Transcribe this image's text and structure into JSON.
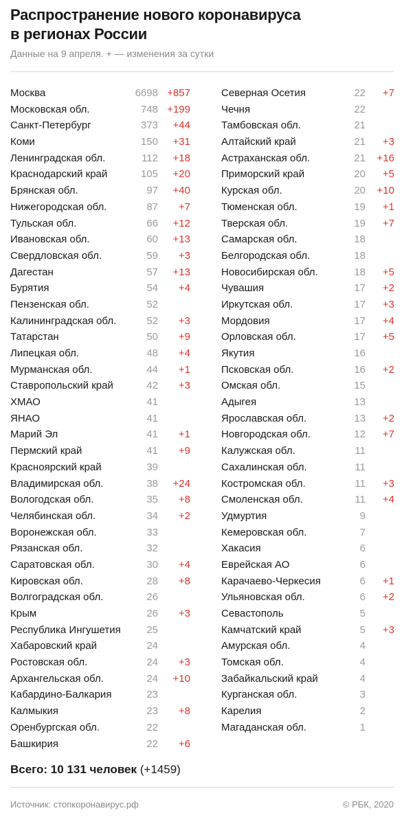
{
  "title_lines": [
    "Распространение нового коронавируса",
    "в регионах России"
  ],
  "subtitle": "Данные на 9 апреля. + — изменения за сутки",
  "left": [
    {
      "name": "Москва",
      "count": "6698",
      "delta": "+857"
    },
    {
      "name": "Московская обл.",
      "count": "748",
      "delta": "+199"
    },
    {
      "name": "Санкт-Петербург",
      "count": "373",
      "delta": "+44"
    },
    {
      "name": "Коми",
      "count": "150",
      "delta": "+31"
    },
    {
      "name": "Ленинградская обл.",
      "count": "112",
      "delta": "+18"
    },
    {
      "name": "Краснодарский край",
      "count": "105",
      "delta": "+20"
    },
    {
      "name": "Брянская обл.",
      "count": "97",
      "delta": "+40"
    },
    {
      "name": "Нижегородская обл.",
      "count": "87",
      "delta": "+7"
    },
    {
      "name": "Тульская обл.",
      "count": "66",
      "delta": "+12"
    },
    {
      "name": "Ивановская обл.",
      "count": "60",
      "delta": "+13"
    },
    {
      "name": "Свердловская обл.",
      "count": "59",
      "delta": "+3"
    },
    {
      "name": "Дагестан",
      "count": "57",
      "delta": "+13"
    },
    {
      "name": "Бурятия",
      "count": "54",
      "delta": "+4"
    },
    {
      "name": "Пензенская обл.",
      "count": "52",
      "delta": ""
    },
    {
      "name": "Калининградская обл.",
      "count": "52",
      "delta": "+3"
    },
    {
      "name": "Татарстан",
      "count": "50",
      "delta": "+9"
    },
    {
      "name": "Липецкая обл.",
      "count": "48",
      "delta": "+4"
    },
    {
      "name": "Мурманская обл.",
      "count": "44",
      "delta": "+1"
    },
    {
      "name": "Ставропольский край",
      "count": "42",
      "delta": "+3"
    },
    {
      "name": "ХМАО",
      "count": "41",
      "delta": ""
    },
    {
      "name": "ЯНАО",
      "count": "41",
      "delta": ""
    },
    {
      "name": "Марий Эл",
      "count": "41",
      "delta": "+1"
    },
    {
      "name": "Пермский край",
      "count": "41",
      "delta": "+9"
    },
    {
      "name": "Красноярский край",
      "count": "39",
      "delta": ""
    },
    {
      "name": "Владимирская обл.",
      "count": "38",
      "delta": "+24"
    },
    {
      "name": "Вологодская обл.",
      "count": "35",
      "delta": "+8"
    },
    {
      "name": "Челябинская обл.",
      "count": "34",
      "delta": "+2"
    },
    {
      "name": "Воронежская обл.",
      "count": "33",
      "delta": ""
    },
    {
      "name": "Рязанская обл.",
      "count": "32",
      "delta": ""
    },
    {
      "name": "Саратовская обл.",
      "count": "30",
      "delta": "+4"
    },
    {
      "name": "Кировская обл.",
      "count": "28",
      "delta": "+8"
    },
    {
      "name": "Волгоградская обл.",
      "count": "26",
      "delta": ""
    },
    {
      "name": "Крым",
      "count": "26",
      "delta": "+3"
    },
    {
      "name": "Республика Ингушетия",
      "count": "25",
      "delta": ""
    },
    {
      "name": "Хабаровский край",
      "count": "24",
      "delta": ""
    },
    {
      "name": "Ростовская обл.",
      "count": "24",
      "delta": "+3"
    },
    {
      "name": "Архангельская обл.",
      "count": "24",
      "delta": "+10"
    },
    {
      "name": "Кабардино-Балкария",
      "count": "23",
      "delta": ""
    },
    {
      "name": "Калмыкия",
      "count": "23",
      "delta": "+8"
    },
    {
      "name": "Оренбургская обл.",
      "count": "22",
      "delta": ""
    },
    {
      "name": "Башкирия",
      "count": "22",
      "delta": "+6"
    }
  ],
  "right": [
    {
      "name": "Северная Осетия",
      "count": "22",
      "delta": "+7"
    },
    {
      "name": "Чечня",
      "count": "22",
      "delta": ""
    },
    {
      "name": "Тамбовская обл.",
      "count": "21",
      "delta": ""
    },
    {
      "name": "Алтайский край",
      "count": "21",
      "delta": "+3"
    },
    {
      "name": "Астраханская обл.",
      "count": "21",
      "delta": "+16"
    },
    {
      "name": "Приморский край",
      "count": "20",
      "delta": "+5"
    },
    {
      "name": "Курская обл.",
      "count": "20",
      "delta": "+10"
    },
    {
      "name": "Тюменская обл.",
      "count": "19",
      "delta": "+1"
    },
    {
      "name": "Тверская обл.",
      "count": "19",
      "delta": "+7"
    },
    {
      "name": "Самарская обл.",
      "count": "18",
      "delta": ""
    },
    {
      "name": "Белгородская обл.",
      "count": "18",
      "delta": ""
    },
    {
      "name": "Новосибирская обл.",
      "count": "18",
      "delta": "+5"
    },
    {
      "name": "Чувашия",
      "count": "17",
      "delta": "+2"
    },
    {
      "name": "Иркутская обл.",
      "count": "17",
      "delta": "+3"
    },
    {
      "name": "Мордовия",
      "count": "17",
      "delta": "+4"
    },
    {
      "name": "Орловская обл.",
      "count": "17",
      "delta": "+5"
    },
    {
      "name": "Якутия",
      "count": "16",
      "delta": ""
    },
    {
      "name": "Псковская обл.",
      "count": "16",
      "delta": "+2"
    },
    {
      "name": "Омская обл.",
      "count": "15",
      "delta": ""
    },
    {
      "name": "Адыгея",
      "count": "13",
      "delta": ""
    },
    {
      "name": "Ярославская обл.",
      "count": "13",
      "delta": "+2"
    },
    {
      "name": "Новгородская обл.",
      "count": "12",
      "delta": "+7"
    },
    {
      "name": "Калужская обл.",
      "count": "11",
      "delta": ""
    },
    {
      "name": "Сахалинская обл.",
      "count": "11",
      "delta": ""
    },
    {
      "name": "Костромская обл.",
      "count": "11",
      "delta": "+3"
    },
    {
      "name": "Смоленская обл.",
      "count": "11",
      "delta": "+4"
    },
    {
      "name": "Удмуртия",
      "count": "9",
      "delta": ""
    },
    {
      "name": "Кемеровская обл.",
      "count": "7",
      "delta": ""
    },
    {
      "name": "Хакасия",
      "count": "6",
      "delta": ""
    },
    {
      "name": "Еврейская АО",
      "count": "6",
      "delta": ""
    },
    {
      "name": "Карачаево-Черкесия",
      "count": "6",
      "delta": "+1"
    },
    {
      "name": "Ульяновская обл.",
      "count": "6",
      "delta": "+2"
    },
    {
      "name": "Севастополь",
      "count": "5",
      "delta": ""
    },
    {
      "name": "Камчатский край",
      "count": "5",
      "delta": "+3"
    },
    {
      "name": "Амурская обл.",
      "count": "4",
      "delta": ""
    },
    {
      "name": "Томская обл.",
      "count": "4",
      "delta": ""
    },
    {
      "name": "Забайкальский край",
      "count": "4",
      "delta": ""
    },
    {
      "name": "Курганская обл.",
      "count": "3",
      "delta": ""
    },
    {
      "name": "Карелия",
      "count": "2",
      "delta": ""
    },
    {
      "name": "Магаданская обл.",
      "count": "1",
      "delta": ""
    }
  ],
  "total_label": "Всего: 10 131 человек",
  "total_delta": "(+1459)",
  "source": "Источник: стопкоронавирус.рф",
  "copyright": "© РБК, 2020"
}
